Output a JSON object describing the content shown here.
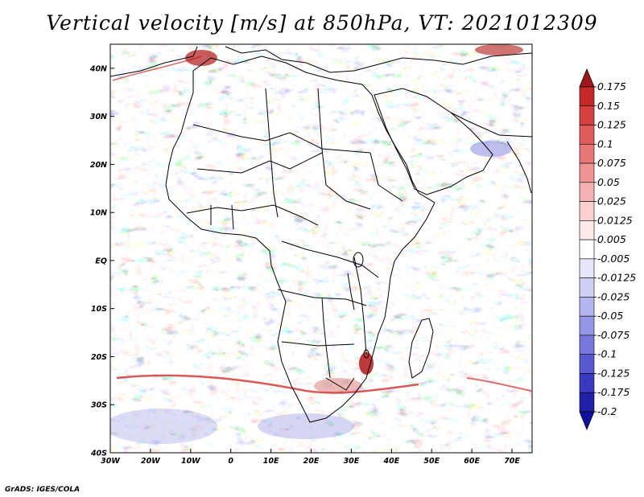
{
  "title": "Vertical velocity [m/s] at 850hPa, VT: 2021012309",
  "credit": "GrADS: IGES/COLA",
  "map": {
    "lon_range": [
      -30,
      75
    ],
    "lat_range": [
      -40,
      45
    ],
    "x_ticks": [
      {
        "lon": -30,
        "label": "30W"
      },
      {
        "lon": -20,
        "label": "20W"
      },
      {
        "lon": -10,
        "label": "10W"
      },
      {
        "lon": 0,
        "label": "0"
      },
      {
        "lon": 10,
        "label": "10E"
      },
      {
        "lon": 20,
        "label": "20E"
      },
      {
        "lon": 30,
        "label": "30E"
      },
      {
        "lon": 40,
        "label": "40E"
      },
      {
        "lon": 50,
        "label": "50E"
      },
      {
        "lon": 60,
        "label": "60E"
      },
      {
        "lon": 70,
        "label": "70E"
      }
    ],
    "y_ticks": [
      {
        "lat": 40,
        "label": "40N"
      },
      {
        "lat": 30,
        "label": "30N"
      },
      {
        "lat": 20,
        "label": "20N"
      },
      {
        "lat": 10,
        "label": "10N"
      },
      {
        "lat": 0,
        "label": "EQ"
      },
      {
        "lat": -10,
        "label": "10S"
      },
      {
        "lat": -20,
        "label": "20S"
      },
      {
        "lat": -30,
        "label": "30S"
      },
      {
        "lat": -40,
        "label": "40S"
      }
    ]
  },
  "colorbar": {
    "labels": [
      "0.175",
      "0.15",
      "0.125",
      "0.1",
      "0.075",
      "0.05",
      "0.025",
      "0.0125",
      "0.005",
      "-0.005",
      "-0.0125",
      "-0.025",
      "-0.05",
      "-0.075",
      "-0.1",
      "-0.125",
      "-0.175",
      "-0.2"
    ],
    "colors": [
      "#a01818",
      "#c42828",
      "#d64040",
      "#e05c5c",
      "#e87878",
      "#ef9494",
      "#f5b2b2",
      "#fad0d0",
      "#ffeaea",
      "#ffffff",
      "#e6e6fa",
      "#cfcff5",
      "#b4b4ee",
      "#9696e6",
      "#7878dc",
      "#5858d0",
      "#3a3ac0",
      "#2020a8",
      "#1010a0"
    ]
  }
}
